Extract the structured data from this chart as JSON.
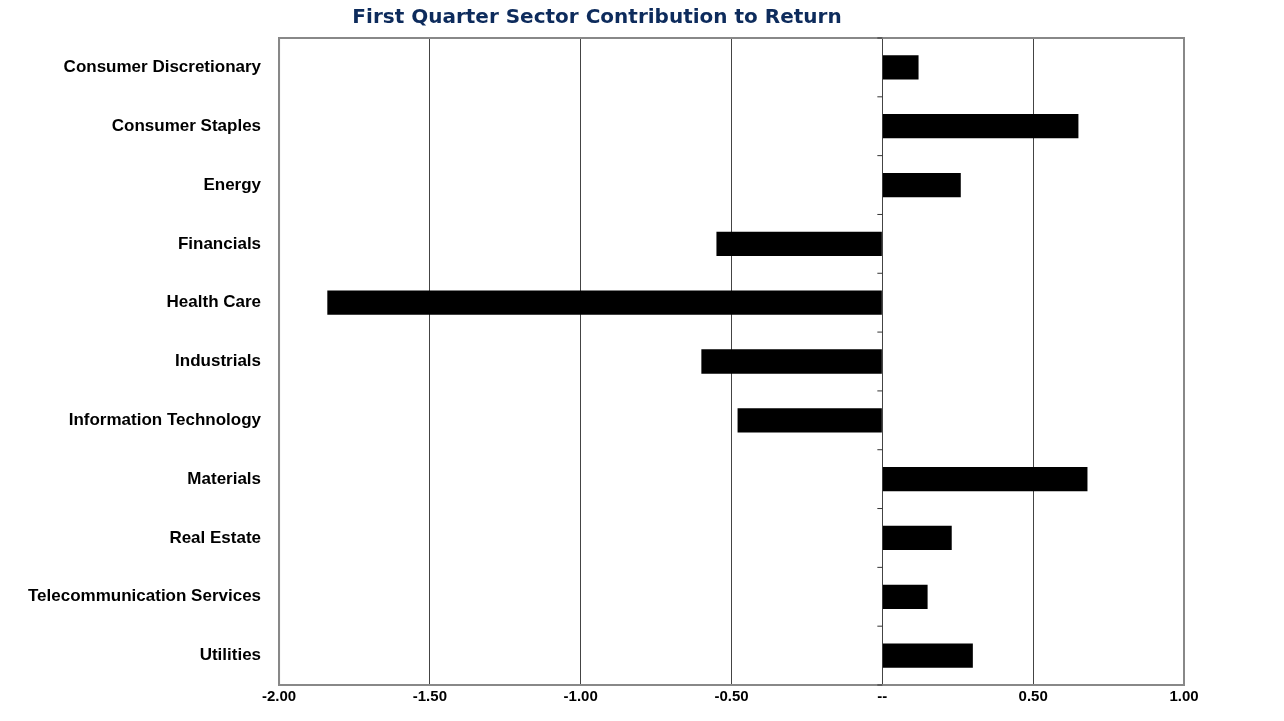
{
  "chart_data": {
    "type": "bar",
    "orientation": "horizontal",
    "title": "First Quarter Sector Contribution to Return",
    "categories": [
      "Consumer Discretionary",
      "Consumer Staples",
      "Energy",
      "Financials",
      "Health Care",
      "Industrials",
      "Information Technology",
      "Materials",
      "Real Estate",
      "Telecommunication Services",
      "Utilities"
    ],
    "values": [
      0.12,
      0.65,
      0.26,
      -0.55,
      -1.84,
      -0.6,
      -0.48,
      0.68,
      0.23,
      0.15,
      0.3
    ],
    "color": "#000000",
    "xlim": [
      -2,
      1
    ],
    "xticks": [
      {
        "value": -2,
        "label": "-2.00"
      },
      {
        "value": -1.5,
        "label": "-1.50"
      },
      {
        "value": -1,
        "label": "-1.00"
      },
      {
        "value": -0.5,
        "label": "-0.50"
      },
      {
        "value": 0,
        "label": "--"
      },
      {
        "value": 0.5,
        "label": "0.50"
      },
      {
        "value": 1,
        "label": "1.00"
      }
    ],
    "grid": "x"
  }
}
